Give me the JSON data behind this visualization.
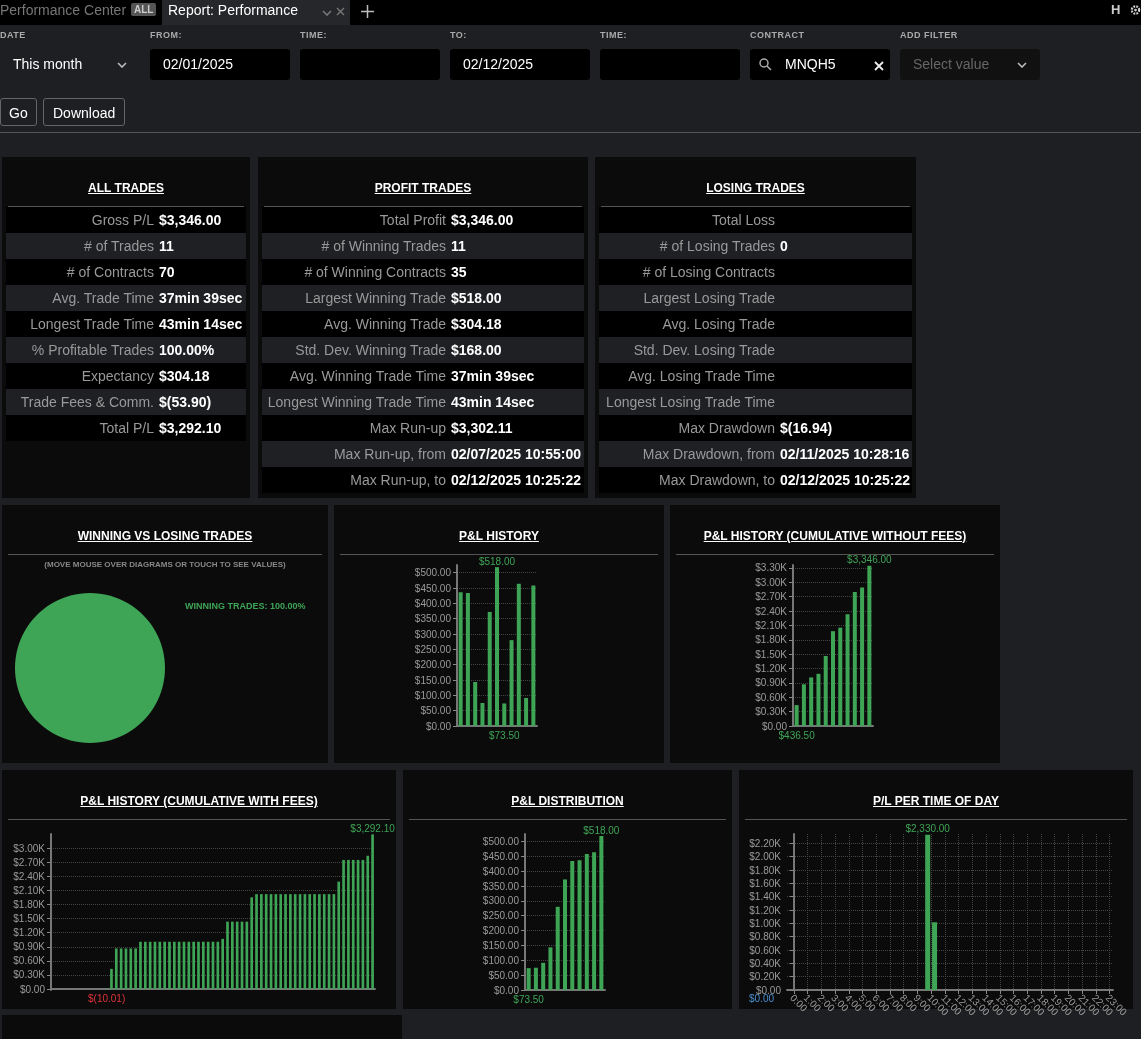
{
  "chart_data": [
    {
      "type": "other",
      "annotations": [
        "Performance Center",
        "ALL",
        "Report: Performance",
        "DATE",
        "This month",
        "FROM:",
        "02/01/2025",
        "TIME:",
        "TO:",
        "02/12/2025",
        "TIME:",
        "CONTRACT",
        "MNQH5",
        "ADD FILTER",
        "Select value",
        "Go",
        "Download",
        "H"
      ]
    },
    {
      "type": "other",
      "title": "ALL TRADES",
      "categories": [
        "Gross P/L",
        "# of Trades",
        "# of Contracts",
        "Avg. Trade Time",
        "Longest Trade Time",
        "% Profitable Trades",
        "Expectancy",
        "Trade Fees & Comm.",
        "Total P/L"
      ],
      "value_labels": [
        "$3,346.00",
        "11",
        "70",
        "37min 39sec",
        "43min 14sec",
        "100.00%",
        "$304.18",
        "$(53.90)",
        "$3,292.10"
      ]
    },
    {
      "type": "other",
      "title": "PROFIT TRADES",
      "categories": [
        "Total Profit",
        "# of Winning Trades",
        "# of Winning Contracts",
        "Largest Winning Trade",
        "Avg. Winning Trade",
        "Std. Dev. Winning Trade",
        "Avg. Winning Trade Time",
        "Longest Winning Trade Time",
        "Max Run-up",
        "Max Run-up, from",
        "Max Run-up, to"
      ],
      "value_labels": [
        "$3,346.00",
        "11",
        "35",
        "$518.00",
        "$304.18",
        "$168.00",
        "37min 39sec",
        "43min 14sec",
        "$3,302.11",
        "02/07/2025 10:55:00",
        "02/12/2025 10:25:22"
      ]
    },
    {
      "type": "other",
      "title": "LOSING TRADES",
      "categories": [
        "Total Loss",
        "# of Losing Trades",
        "# of Losing Contracts",
        "Largest Losing Trade",
        "Avg. Losing Trade",
        "Std. Dev. Losing Trade",
        "Avg. Losing Trade Time",
        "Longest Losing Trade Time",
        "Max Drawdown",
        "Max Drawdown, from",
        "Max Drawdown, to"
      ],
      "value_labels": [
        null,
        "0",
        null,
        null,
        null,
        null,
        null,
        null,
        "$(16.94)",
        "02/11/2025 10:28:16",
        "02/12/2025 10:25:22"
      ]
    },
    {
      "type": "pie",
      "title": "WINNING VS LOSING TRADES",
      "subtitle": "(MOVE MOUSE OVER DIAGRAMS OR TOUCH TO SEE VALUES)",
      "categories": [
        "WINNING TRADES"
      ],
      "values": [
        100
      ],
      "colors": [
        "#3fa556"
      ],
      "value_labels": [
        "100.00%"
      ]
    },
    {
      "type": "bar",
      "title": "P&L HISTORY",
      "categories": [
        null,
        null,
        null,
        null,
        null,
        null,
        null,
        null,
        null,
        null,
        null
      ],
      "values": [
        436.5,
        434,
        143.5,
        75,
        372,
        518,
        73.5,
        280,
        464,
        91.5,
        458
      ],
      "color": "#3fa556",
      "ylim": [
        0,
        525
      ],
      "yticks": [
        {
          "value": 0,
          "label": "$0.00"
        },
        {
          "value": 50,
          "label": "$50.00"
        },
        {
          "value": 100,
          "label": "$100.00"
        },
        {
          "value": 150,
          "label": "$150.00"
        },
        {
          "value": 200,
          "label": "$200.00"
        },
        {
          "value": 250,
          "label": "$250.00"
        },
        {
          "value": 300,
          "label": "$300.00"
        },
        {
          "value": 350,
          "label": "$350.00"
        },
        {
          "value": 400,
          "label": "$400.00"
        },
        {
          "value": 450,
          "label": "$450.00"
        },
        {
          "value": 500,
          "label": "$500.00"
        }
      ],
      "grid": "y",
      "tick_labels": "y",
      "value_labels": [
        null,
        null,
        null,
        null,
        null,
        "$518.00",
        "$73.50",
        null,
        null,
        null,
        null
      ]
    },
    {
      "type": "bar",
      "title": "P&L HISTORY (CUMULATIVE WITHOUT FEES)",
      "categories": [
        null,
        null,
        null,
        null,
        null,
        null,
        null,
        null,
        null,
        null,
        null
      ],
      "values": [
        436.5,
        870.5,
        1014,
        1089,
        1461,
        1979,
        2052.5,
        2332.5,
        2796.5,
        2888,
        3346
      ],
      "color": "#3fa556",
      "ylim": [
        0,
        3360
      ],
      "yticks": [
        {
          "value": 0,
          "label": "$0.00"
        },
        {
          "value": 300,
          "label": "$0.30K"
        },
        {
          "value": 600,
          "label": "$0.60K"
        },
        {
          "value": 900,
          "label": "$0.90K"
        },
        {
          "value": 1200,
          "label": "$1.20K"
        },
        {
          "value": 1500,
          "label": "$1.50K"
        },
        {
          "value": 1800,
          "label": "$1.80K"
        },
        {
          "value": 2100,
          "label": "$2.10K"
        },
        {
          "value": 2400,
          "label": "$2.40K"
        },
        {
          "value": 2700,
          "label": "$2.70K"
        },
        {
          "value": 3000,
          "label": "$3.00K"
        },
        {
          "value": 3300,
          "label": "$3.30K"
        }
      ],
      "grid": "y",
      "tick_labels": "y",
      "value_labels": [
        "$436.50",
        null,
        null,
        null,
        null,
        null,
        null,
        null,
        null,
        null,
        "$3,346.00"
      ]
    },
    {
      "type": "bar",
      "title": "P&L HISTORY (CUMULATIVE WITH FEES)",
      "categories": [
        null,
        null,
        null,
        null,
        null,
        null,
        null,
        null,
        null,
        null,
        null,
        null,
        null,
        null,
        null,
        null,
        null,
        null,
        null,
        null,
        null,
        null,
        null,
        null,
        null,
        null,
        null,
        null,
        null,
        null,
        null,
        null,
        null,
        null,
        null,
        null,
        null,
        null,
        null,
        null,
        null,
        null,
        null,
        null,
        null,
        null,
        null,
        null,
        null,
        null,
        null,
        null,
        null,
        null,
        null,
        null,
        null,
        null,
        null,
        null,
        null,
        null,
        null,
        null,
        null,
        null,
        null
      ],
      "values": [
        0,
        0,
        0,
        0,
        0,
        0,
        0,
        0,
        0,
        0,
        0,
        -10.01,
        430,
        864,
        864,
        864,
        864,
        864,
        1007,
        1007,
        1007,
        1007,
        1007,
        1007,
        1007,
        1007,
        1007,
        1007,
        1007,
        1007,
        1007,
        1007,
        1007,
        1007,
        1007,
        1068,
        1435,
        1435,
        1435,
        1435,
        1435,
        1952,
        2020,
        2020,
        2020,
        2020,
        2020,
        2020,
        2020,
        2020,
        2020,
        2020,
        2020,
        2020,
        2020,
        2020,
        2020,
        2020,
        2020,
        2286,
        2748,
        2748,
        2748,
        2748,
        2748,
        2837,
        3292.1
      ],
      "color": "#3fa556",
      "ylim": [
        -20,
        3300
      ],
      "yticks": [
        {
          "value": 0,
          "label": "$0.00"
        },
        {
          "value": 300,
          "label": "$0.30K"
        },
        {
          "value": 600,
          "label": "$0.60K"
        },
        {
          "value": 900,
          "label": "$0.90K"
        },
        {
          "value": 1200,
          "label": "$1.20K"
        },
        {
          "value": 1500,
          "label": "$1.50K"
        },
        {
          "value": 1800,
          "label": "$1.80K"
        },
        {
          "value": 2100,
          "label": "$2.10K"
        },
        {
          "value": 2400,
          "label": "$2.40K"
        },
        {
          "value": 2700,
          "label": "$2.70K"
        },
        {
          "value": 3000,
          "label": "$3.00K"
        }
      ],
      "grid": "y",
      "tick_labels": "y",
      "value_labels": [
        null,
        null,
        null,
        null,
        null,
        null,
        null,
        null,
        null,
        null,
        null,
        "$(10.01)",
        null,
        null,
        null,
        null,
        null,
        null,
        null,
        null,
        null,
        null,
        null,
        null,
        null,
        null,
        null,
        null,
        null,
        null,
        null,
        null,
        null,
        null,
        null,
        null,
        null,
        null,
        null,
        null,
        null,
        null,
        null,
        null,
        null,
        null,
        null,
        null,
        null,
        null,
        null,
        null,
        null,
        null,
        null,
        null,
        null,
        null,
        null,
        null,
        null,
        null,
        null,
        null,
        null,
        null,
        "$3,292.10"
      ]
    },
    {
      "type": "bar",
      "title": "P&L DISTRIBUTION",
      "categories": [
        null,
        null,
        null,
        null,
        null,
        null,
        null,
        null,
        null,
        null,
        null
      ],
      "values": [
        73.5,
        75,
        91.5,
        143.5,
        280,
        372,
        434,
        436.5,
        458,
        464,
        518
      ],
      "color": "#3fa556",
      "ylim": [
        0,
        525
      ],
      "yticks": [
        {
          "value": 0,
          "label": "$0.00"
        },
        {
          "value": 50,
          "label": "$50.00"
        },
        {
          "value": 100,
          "label": "$100.00"
        },
        {
          "value": 150,
          "label": "$150.00"
        },
        {
          "value": 200,
          "label": "$200.00"
        },
        {
          "value": 250,
          "label": "$250.00"
        },
        {
          "value": 300,
          "label": "$300.00"
        },
        {
          "value": 350,
          "label": "$350.00"
        },
        {
          "value": 400,
          "label": "$400.00"
        },
        {
          "value": 450,
          "label": "$450.00"
        },
        {
          "value": 500,
          "label": "$500.00"
        }
      ],
      "grid": "y",
      "tick_labels": "y",
      "value_labels": [
        "$73.50",
        null,
        null,
        null,
        null,
        null,
        null,
        null,
        null,
        null,
        "$518.00"
      ]
    },
    {
      "type": "bar",
      "title": "P/L PER TIME OF DAY",
      "x": [
        9.75,
        10.25
      ],
      "values": [
        2330,
        1016
      ],
      "color": "#3fa556",
      "xlim": [
        -0.5,
        23.25
      ],
      "xticks": [
        {
          "value": 0,
          "label": "0:00"
        },
        {
          "value": 1,
          "label": "1:00"
        },
        {
          "value": 2,
          "label": "2:00"
        },
        {
          "value": 3,
          "label": "3:00"
        },
        {
          "value": 4,
          "label": "4:00"
        },
        {
          "value": 5,
          "label": "5:00"
        },
        {
          "value": 6,
          "label": "6:00"
        },
        {
          "value": 7,
          "label": "7:00"
        },
        {
          "value": 8,
          "label": "8:00"
        },
        {
          "value": 9,
          "label": "9:00"
        },
        {
          "value": 10,
          "label": "10:00"
        },
        {
          "value": 11,
          "label": "11:00"
        },
        {
          "value": 12,
          "label": "12:00"
        },
        {
          "value": 13,
          "label": "13:00"
        },
        {
          "value": 14,
          "label": "14:00"
        },
        {
          "value": 15,
          "label": "15:00"
        },
        {
          "value": 16,
          "label": "16:00"
        },
        {
          "value": 17,
          "label": "17:00"
        },
        {
          "value": 18,
          "label": "18:00"
        },
        {
          "value": 19,
          "label": "19:00"
        },
        {
          "value": 20,
          "label": "20:00"
        },
        {
          "value": 21,
          "label": "21:00"
        },
        {
          "value": 22,
          "label": "22:00"
        },
        {
          "value": 23,
          "label": "23:00"
        }
      ],
      "ylim": [
        0,
        2340
      ],
      "yticks": [
        {
          "value": 0,
          "label": "$0.00"
        },
        {
          "value": 200,
          "label": "$0.20K"
        },
        {
          "value": 400,
          "label": "$0.40K"
        },
        {
          "value": 600,
          "label": "$0.60K"
        },
        {
          "value": 800,
          "label": "$0.80K"
        },
        {
          "value": 1000,
          "label": "$1.00K"
        },
        {
          "value": 1200,
          "label": "$1.20K"
        },
        {
          "value": 1400,
          "label": "$1.40K"
        },
        {
          "value": 1600,
          "label": "$1.60K"
        },
        {
          "value": 1800,
          "label": "$1.80K"
        },
        {
          "value": 2000,
          "label": "$2.00K"
        },
        {
          "value": 2200,
          "label": "$2.20K"
        }
      ],
      "grid": true,
      "value_labels": [
        "$2,330.00",
        null
      ],
      "annotations": [
        "$0.00"
      ]
    }
  ]
}
